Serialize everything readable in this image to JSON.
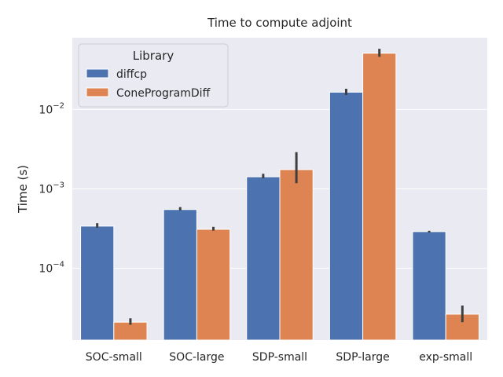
{
  "chart_data": {
    "type": "bar",
    "title": "Time to compute adjoint",
    "xlabel": "",
    "ylabel": "Time (s)",
    "yscale": "log",
    "ylim": [
      1.25e-05,
      0.08
    ],
    "yticks": [
      {
        "value": 0.0001,
        "base": "10",
        "exp": "−4"
      },
      {
        "value": 0.001,
        "base": "10",
        "exp": "−3"
      },
      {
        "value": 0.01,
        "base": "10",
        "exp": "−2"
      }
    ],
    "grid": true,
    "background": "#eaeaf2",
    "categories": [
      "SOC-small",
      "SOC-large",
      "SDP-small",
      "SDP-large",
      "exp-small"
    ],
    "legend": {
      "title": "Library",
      "position": "top-left"
    },
    "series": [
      {
        "name": "diffcp",
        "color": "#4c72b0",
        "values": [
          0.00034,
          0.00055,
          0.00142,
          0.0165,
          0.00029
        ],
        "err_low": [
          0.000325,
          0.000535,
          0.00136,
          0.0152,
          0.000283
        ],
        "err_high": [
          0.00037,
          0.00059,
          0.00155,
          0.0182,
          0.000297
        ]
      },
      {
        "name": "ConeProgramDiff",
        "color": "#dd8452",
        "values": [
          2.1e-05,
          0.00031,
          0.00175,
          0.051,
          2.65e-05
        ],
        "err_low": [
          1.95e-05,
          0.000298,
          0.00118,
          0.046,
          2.1e-05
        ],
        "err_high": [
          2.35e-05,
          0.000333,
          0.0029,
          0.058,
          3.4e-05
        ]
      }
    ]
  }
}
